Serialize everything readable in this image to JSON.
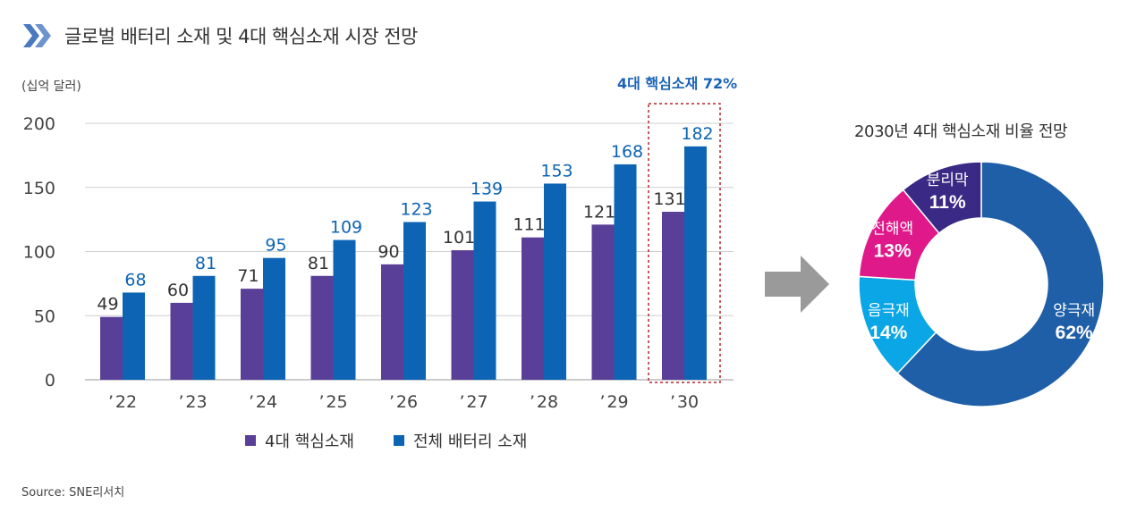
{
  "header": {
    "title": "글로벌 배터리 소재 및 4대 핵심소재 시장 전망",
    "icon": "double-chevron-right-icon"
  },
  "colors": {
    "core": "#5a3f98",
    "total": "#0d64b4",
    "highlight": "#1a63b8",
    "icon": "#4a79c0",
    "arrow": "#9a9a9a",
    "highlight_box": "#b3262e"
  },
  "chart_data": [
    {
      "type": "bar",
      "unit_label": "(십억 달러)",
      "highlight_label": "4대 핵심소재 72%",
      "categories": [
        "’ 22",
        "’ 23",
        "’ 24",
        "’ 25",
        "’ 26",
        "’ 27",
        "’ 28",
        "’ 29",
        "’ 30"
      ],
      "series": [
        {
          "name": "4대 핵심소재",
          "values": [
            49,
            60,
            71,
            81,
            90,
            101,
            111,
            121,
            131
          ]
        },
        {
          "name": "전체 배터리 소재",
          "values": [
            68,
            81,
            95,
            109,
            123,
            139,
            153,
            168,
            182
          ]
        }
      ],
      "yticks": [
        0,
        50,
        100,
        150,
        200
      ],
      "ylim": [
        0,
        200
      ],
      "grid": true,
      "highlight_category_index": 8
    },
    {
      "type": "pie",
      "title": "2030년 4대 핵심소재 비율 전망",
      "slices": [
        {
          "label": "양극재",
          "value": 62,
          "display": "62%",
          "color": "#1f5fa8"
        },
        {
          "label": "음극재",
          "value": 14,
          "display": "14%",
          "color": "#0aa6e5"
        },
        {
          "label": "전해액",
          "value": 13,
          "display": "13%",
          "color": "#e0198a"
        },
        {
          "label": "분리막",
          "value": 11,
          "display": "11%",
          "color": "#3b2a85"
        }
      ]
    }
  ],
  "source": "Source: SNE리서치"
}
